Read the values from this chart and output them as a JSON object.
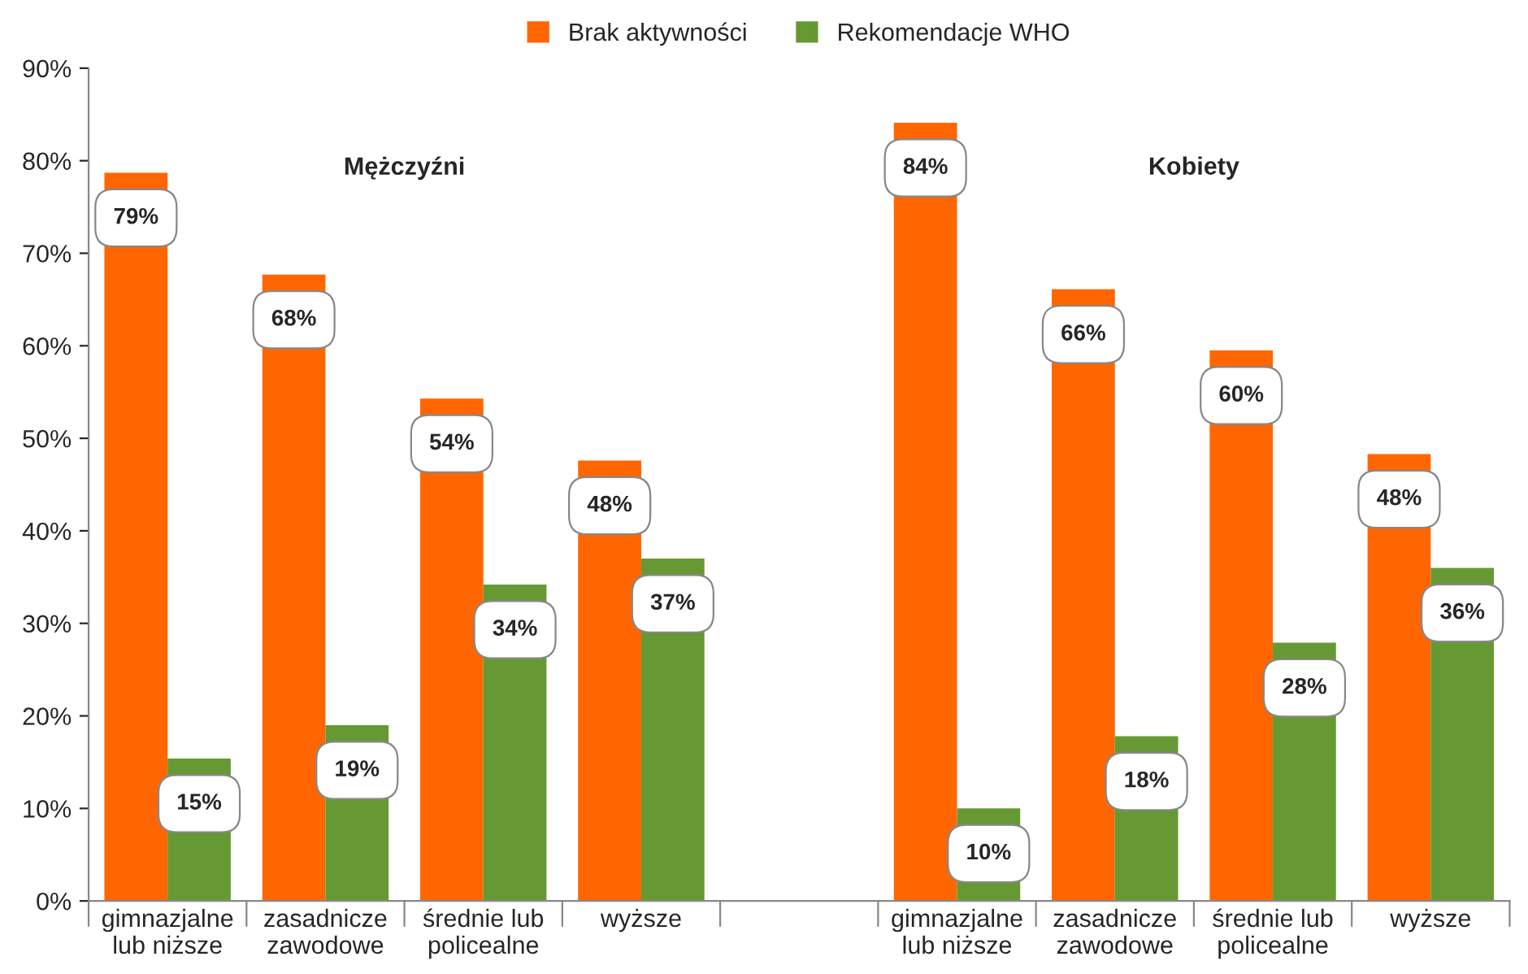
{
  "chart_data": {
    "type": "bar",
    "categories": [
      "gimnazjalne\nlub niższe",
      "zasadnicze\nzawodowe",
      "średnie lub\npolicealne",
      "wyższe",
      null,
      "gimnazjalne\nlub niższe",
      "zasadnicze\nzawodowe",
      "średnie lub\npolicealne",
      "wyższe"
    ],
    "series": [
      {
        "name": "Brak aktywności",
        "color": "#ff6600",
        "values": [
          78.7,
          67.7,
          54.3,
          47.6,
          null,
          84.1,
          66.1,
          59.5,
          48.3
        ],
        "value_labels": [
          "79%",
          "68%",
          "54%",
          "48%",
          null,
          "84%",
          "66%",
          "60%",
          "48%"
        ]
      },
      {
        "name": "Rekomendacje WHO",
        "color": "#669933",
        "values": [
          15.4,
          19.0,
          34.2,
          37.0,
          null,
          10.0,
          17.8,
          27.9,
          36.0
        ],
        "value_labels": [
          "15%",
          "19%",
          "34%",
          "37%",
          null,
          "10%",
          "18%",
          "28%",
          "36%"
        ]
      }
    ],
    "annotations": [
      "Mężczyźni",
      "Kobiety"
    ],
    "ylim": [
      0,
      90
    ],
    "yticks": [
      {
        "value": 0,
        "label": "0%"
      },
      {
        "value": 10,
        "label": "10%"
      },
      {
        "value": 20,
        "label": "20%"
      },
      {
        "value": 30,
        "label": "30%"
      },
      {
        "value": 40,
        "label": "40%"
      },
      {
        "value": 50,
        "label": "50%"
      },
      {
        "value": 60,
        "label": "60%"
      },
      {
        "value": 70,
        "label": "70%"
      },
      {
        "value": 80,
        "label": "80%"
      },
      {
        "value": 90,
        "label": "90%"
      }
    ],
    "grid": false,
    "legend": "top"
  }
}
